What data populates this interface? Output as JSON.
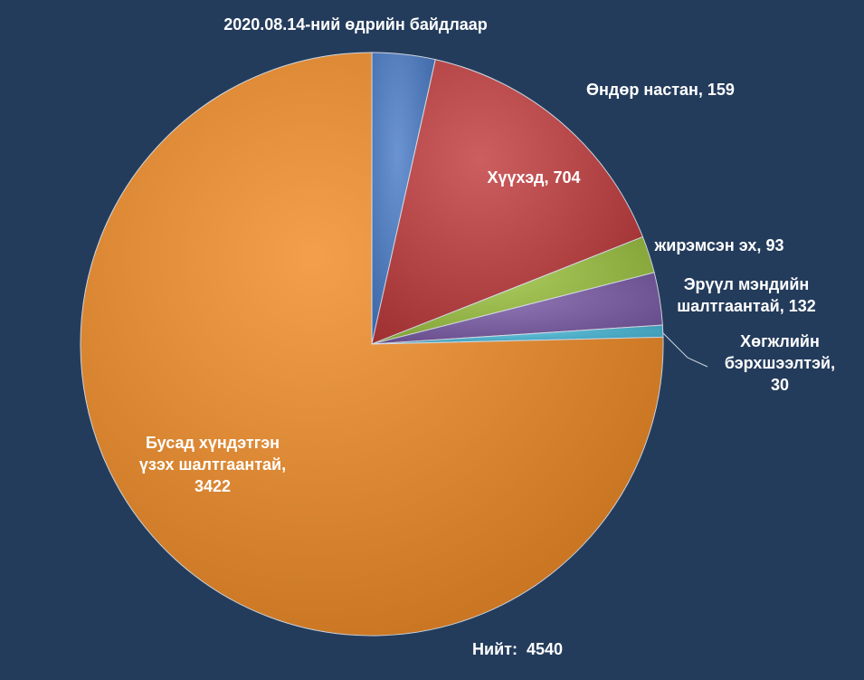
{
  "chart_data": {
    "type": "pie",
    "title": "2020.08.14-ний өдрийн байдлаар",
    "values": [
      159,
      704,
      93,
      132,
      30,
      3422
    ],
    "value_labels": [
      [
        "Өндөр настан, 159"
      ],
      [
        "Хүүхэд, 704"
      ],
      [
        "жирэмсэн эх, 93"
      ],
      [
        "Эрүүл мэндийн",
        "шалтгаантай, 132"
      ],
      [
        "Хөгжлийн",
        "бэрхшээлтэй,",
        "30"
      ],
      [
        "Бусад хүндэтгэн",
        "үзэх шалтгаантай,",
        "3422"
      ]
    ],
    "colors": [
      "#4a7cc9",
      "#c23b3d",
      "#9bc23f",
      "#7b5ba8",
      "#45b8d8",
      "#f08a24"
    ],
    "total_label": "Нийт:",
    "total": 4540
  }
}
